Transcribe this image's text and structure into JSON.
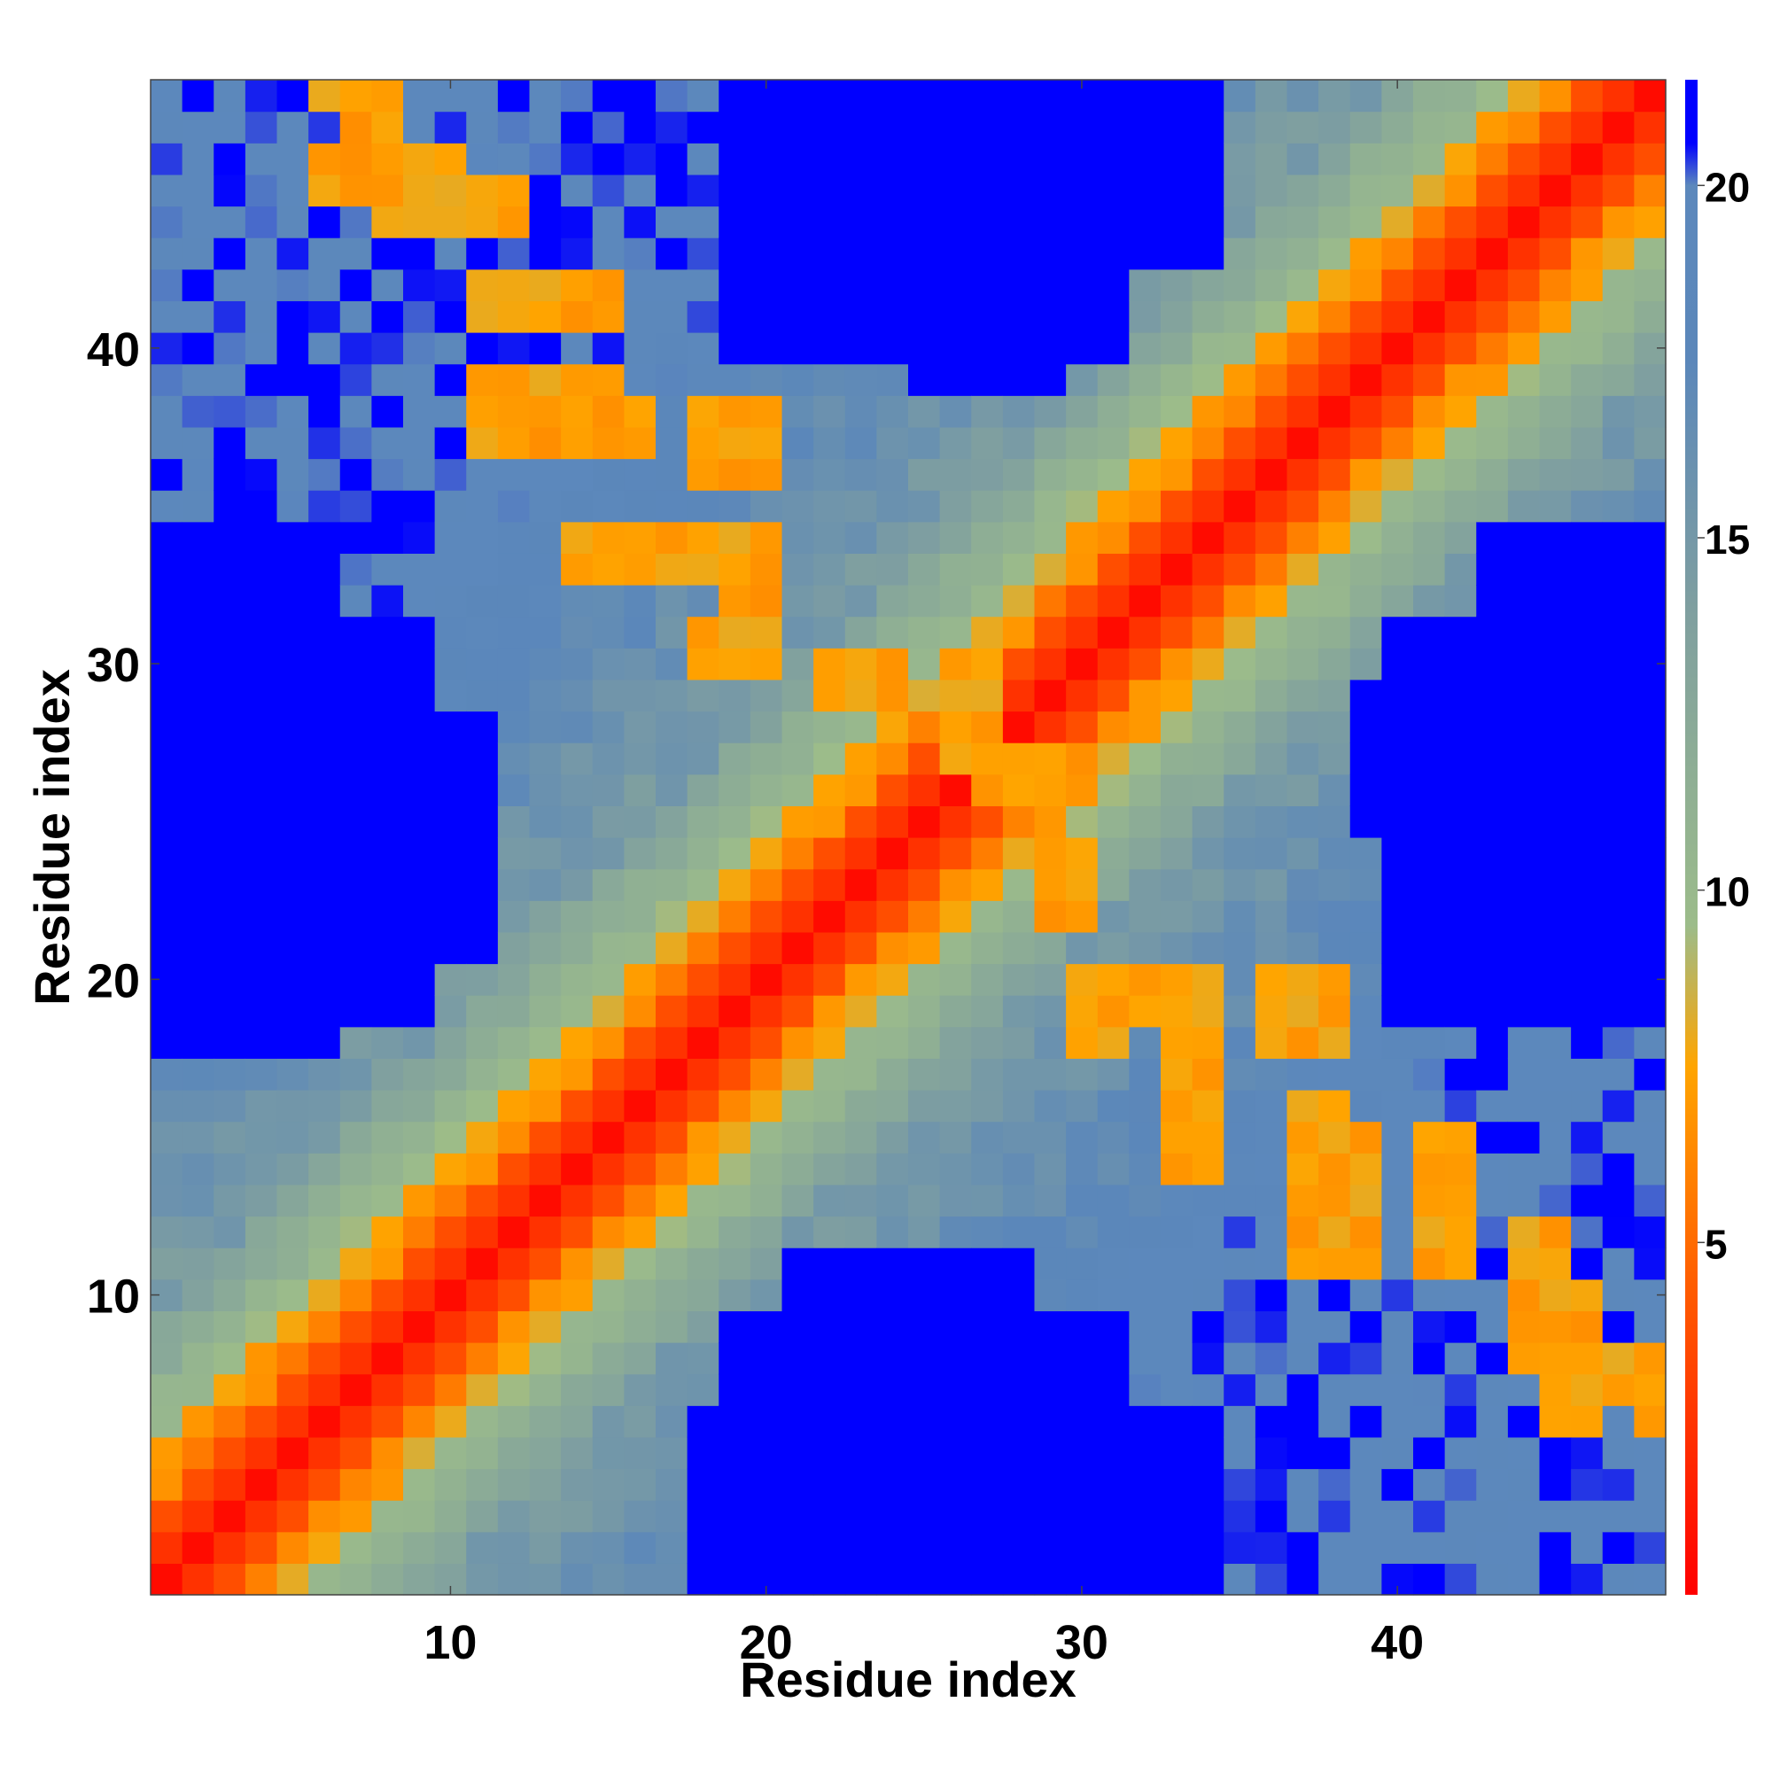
{
  "chart_data": {
    "type": "heatmap",
    "title": "",
    "xlabel": "Residue index",
    "ylabel": "Residue index",
    "xlim": [
      0.5,
      48.5
    ],
    "ylim": [
      0.5,
      48.5
    ],
    "x_ticks": [
      10,
      20,
      30,
      40
    ],
    "y_ticks": [
      10,
      20,
      30,
      40
    ],
    "colorbar": {
      "ticks": [
        5,
        10,
        15,
        20
      ],
      "range": [
        0,
        21.5
      ],
      "colorscale": [
        {
          "value": 0,
          "color": "#FF0000"
        },
        {
          "value": 4.5,
          "color": "#FF5F00"
        },
        {
          "value": 7.5,
          "color": "#FFA500"
        },
        {
          "value": 9.5,
          "color": "#9CBC8A"
        },
        {
          "value": 14,
          "color": "#7F9FA0"
        },
        {
          "value": 17.5,
          "color": "#5B87BA"
        },
        {
          "value": 20,
          "color": "#5C88BC"
        },
        {
          "value": 20.6,
          "color": "#0000FF"
        },
        {
          "value": 21.5,
          "color": "#0000FF"
        }
      ]
    },
    "grid": false,
    "legend": "colorbar-right",
    "n_residues": 48,
    "matrix_description": "Symmetric pairwise residue distance map (Å-like units). Diagonal ~0, distance grows with |i-j|; helix-like periodic contacts near diagonal (orange), far-apart blocks saturate (blue >20). Approximate generated values follow.",
    "values_rule": {
      "diagonal_band": "d(i,j) ≈ 1.0 + 1.35*|i-j| for |i-j|<=2, ≈ 5-8 for |i-j| 3-4, ≈ 9-13 for |i-j| 5-8, ≈ 14-19 for larger separations",
      "blue_regions": [
        {
          "x": [
            18,
            34
          ],
          "y": [
            1,
            6
          ]
        },
        {
          "x": [
            21,
            28
          ],
          "y": [
            7,
            11
          ]
        },
        {
          "x": [
            1,
            9
          ],
          "y": [
            19,
            31
          ]
        },
        {
          "x": [
            40,
            48
          ],
          "y": [
            19,
            31
          ]
        },
        {
          "x": [
            21,
            34
          ],
          "y": [
            43,
            48
          ]
        },
        {
          "x": [
            25,
            29
          ],
          "y": [
            39,
            43
          ]
        }
      ],
      "orange_contacts": [
        {
          "x": [
            7,
            8
          ],
          "y": [
            45,
            48
          ]
        },
        {
          "x": [
            8,
            10
          ],
          "y": [
            44,
            45
          ]
        },
        {
          "x": [
            11,
            12
          ],
          "y": [
            44,
            45
          ]
        },
        {
          "x": [
            15,
            16
          ],
          "y": [
            37,
            38
          ]
        },
        {
          "x": [
            18,
            20
          ],
          "y": [
            36,
            37
          ]
        },
        {
          "x": [
            15,
            18
          ],
          "y": [
            33,
            34
          ]
        },
        {
          "x": [
            19,
            20
          ],
          "y": [
            30,
            34
          ]
        },
        {
          "x": [
            22,
            24
          ],
          "y": [
            29,
            30
          ]
        },
        {
          "x": [
            26,
            27
          ],
          "y": [
            27,
            30
          ]
        },
        {
          "x": [
            30,
            31
          ],
          "y": [
            18,
            20
          ]
        },
        {
          "x": [
            33,
            34
          ],
          "y": [
            14,
            16
          ]
        },
        {
          "x": [
            37,
            38
          ],
          "y": [
            18,
            20
          ]
        },
        {
          "x": [
            37,
            39
          ],
          "y": [
            11,
            15
          ]
        },
        {
          "x": [
            41,
            42
          ],
          "y": [
            11,
            15
          ]
        },
        {
          "x": [
            45,
            46
          ],
          "y": [
            6,
            10
          ]
        },
        {
          "x": [
            48,
            48
          ],
          "y": [
            6,
            8
          ]
        }
      ]
    }
  }
}
